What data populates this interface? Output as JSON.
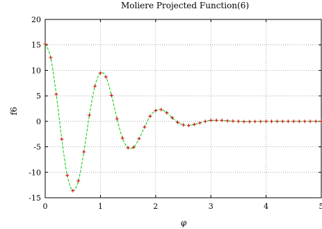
{
  "chart_data": {
    "type": "line",
    "title": "Moliere Projected Function(6)",
    "xlabel": "φ",
    "ylabel": "f6",
    "xlim": [
      0,
      5
    ],
    "ylim": [
      -15,
      20
    ],
    "xticks": [
      0,
      1,
      2,
      3,
      4,
      5
    ],
    "xtick_labels": [
      "0",
      "1",
      "2",
      "3",
      "4",
      "5"
    ],
    "yticks": [
      -15,
      -10,
      -5,
      0,
      5,
      10,
      15,
      20
    ],
    "ytick_labels": [
      "-15",
      "-10",
      "-5",
      "0",
      "5",
      "10",
      "15",
      "20"
    ],
    "grid": true,
    "grid_style": "dotted",
    "series": [
      {
        "line_color": "#00cc00",
        "marker_color": "#cc0000",
        "line_style": "dashed",
        "marker": "plus",
        "x": [
          0,
          0.1,
          0.2,
          0.3,
          0.4,
          0.5,
          0.6,
          0.7,
          0.8,
          0.9,
          1.0,
          1.1,
          1.2,
          1.3,
          1.4,
          1.5,
          1.6,
          1.7,
          1.8,
          1.9,
          2.0,
          2.1,
          2.2,
          2.3,
          2.4,
          2.5,
          2.6,
          2.7,
          2.8,
          2.9,
          3.0,
          3.1,
          3.2,
          3.3,
          3.4,
          3.5,
          3.6,
          3.7,
          3.8,
          3.9,
          4.0,
          4.1,
          4.2,
          4.3,
          4.4,
          4.5,
          4.6,
          4.7,
          4.8,
          4.9,
          5.0
        ],
        "y": [
          15.2,
          12.5,
          5.3,
          -3.5,
          -10.6,
          -13.6,
          -11.7,
          -6.0,
          1.2,
          6.9,
          9.5,
          8.7,
          5.1,
          0.5,
          -3.3,
          -5.2,
          -5.1,
          -3.4,
          -1.1,
          1.0,
          2.1,
          2.3,
          1.7,
          0.7,
          -0.2,
          -0.7,
          -0.8,
          -0.6,
          -0.3,
          0.0,
          0.2,
          0.2,
          0.2,
          0.1,
          0.05,
          0.0,
          -0.05,
          -0.05,
          -0.03,
          -0.02,
          0.0,
          0.0,
          0.0,
          0.0,
          0.0,
          0.0,
          0.0,
          0.0,
          0.0,
          0.0,
          0.0
        ]
      }
    ]
  }
}
